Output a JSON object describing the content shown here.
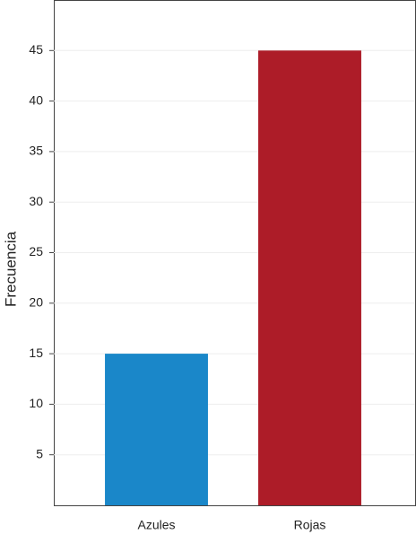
{
  "chart_data": {
    "type": "bar",
    "y_label": "Frecuencia",
    "categories": [
      "Azules",
      "Rojas"
    ],
    "values": [
      15,
      45
    ],
    "colors": [
      "#1a87c9",
      "#ad1c28"
    ],
    "ylim": [
      0,
      50
    ],
    "yticks": [
      5,
      10,
      15,
      20,
      25,
      30,
      35,
      40,
      45
    ],
    "grid": true
  }
}
